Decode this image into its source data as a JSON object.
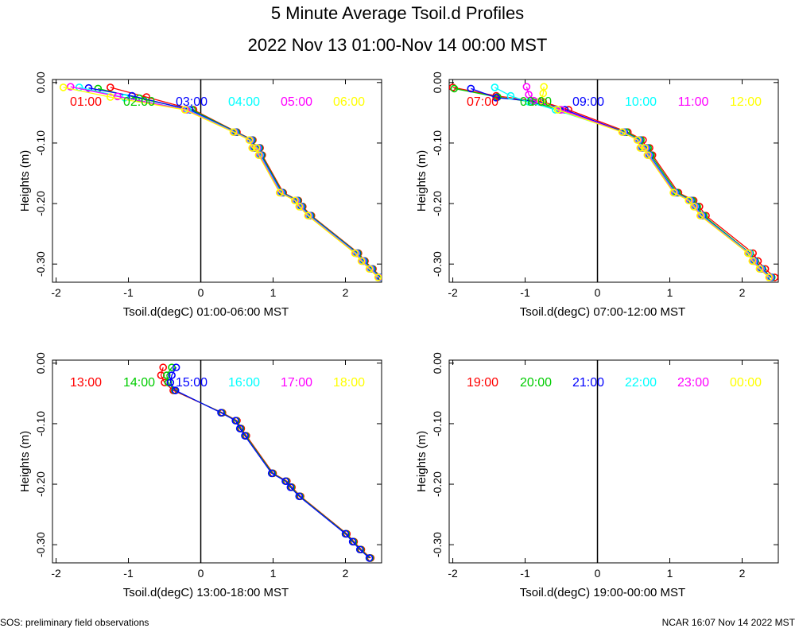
{
  "page": {
    "title": "5 Minute Average Tsoil.d Profiles",
    "subtitle": "2022 Nov 13 01:00-Nov 14 00:00 MST",
    "footer_left": "SOS: preliminary field observations",
    "footer_right": "NCAR 16:07 Nov 14 2022 MST"
  },
  "colors": [
    "#ff0000",
    "#00cc00",
    "#0000ff",
    "#00ffff",
    "#ff00ff",
    "#ffff00"
  ],
  "chart_data": [
    {
      "type": "line",
      "xlabel": "Tsoil.d(degC) 01:00-06:00 MST",
      "ylabel": "Heights (m)",
      "xlim": [
        -2.05,
        2.5
      ],
      "ylim": [
        -0.33,
        0.005
      ],
      "xticks": [
        -2,
        -1,
        0,
        1,
        2
      ],
      "yticks": [
        0.0,
        -0.1,
        -0.2,
        -0.3
      ],
      "ytick_labels": [
        "0.00",
        "-0.10",
        "-0.20",
        "-0.30"
      ],
      "vline_x": 0,
      "series": [
        {
          "name": "01:00",
          "x": [
            -1.25,
            -0.75,
            -0.1,
            0.5,
            0.72,
            0.76,
            0.82,
            0.85,
            1.14,
            1.35,
            1.41,
            1.53,
            2.18,
            2.27,
            2.38,
            2.5
          ],
          "y": [
            -0.008,
            -0.024,
            -0.045,
            -0.082,
            -0.095,
            -0.108,
            -0.108,
            -0.12,
            -0.182,
            -0.195,
            -0.205,
            -0.22,
            -0.282,
            -0.295,
            -0.308,
            -0.322
          ]
        },
        {
          "name": "02:00",
          "x": [
            -1.42,
            -0.85,
            -0.12,
            0.49,
            0.71,
            0.75,
            0.81,
            0.84,
            1.13,
            1.34,
            1.4,
            1.52,
            2.17,
            2.26,
            2.37,
            2.49
          ],
          "y": [
            -0.01,
            -0.026,
            -0.045,
            -0.082,
            -0.095,
            -0.108,
            -0.108,
            -0.12,
            -0.182,
            -0.195,
            -0.205,
            -0.22,
            -0.282,
            -0.295,
            -0.308,
            -0.322
          ]
        },
        {
          "name": "03:00",
          "x": [
            -1.55,
            -0.95,
            -0.15,
            0.48,
            0.7,
            0.74,
            0.8,
            0.83,
            1.12,
            1.33,
            1.39,
            1.51,
            2.16,
            2.25,
            2.36,
            2.48
          ],
          "y": [
            -0.009,
            -0.022,
            -0.045,
            -0.082,
            -0.095,
            -0.108,
            -0.108,
            -0.12,
            -0.182,
            -0.195,
            -0.205,
            -0.22,
            -0.282,
            -0.295,
            -0.308,
            -0.322
          ]
        },
        {
          "name": "04:00",
          "x": [
            -1.68,
            -1.05,
            -0.18,
            0.47,
            0.69,
            0.73,
            0.79,
            0.82,
            1.11,
            1.32,
            1.38,
            1.5,
            2.15,
            2.24,
            2.35,
            2.47
          ],
          "y": [
            -0.008,
            -0.025,
            -0.045,
            -0.082,
            -0.095,
            -0.108,
            -0.108,
            -0.12,
            -0.182,
            -0.195,
            -0.205,
            -0.22,
            -0.282,
            -0.295,
            -0.308,
            -0.322
          ]
        },
        {
          "name": "05:00",
          "x": [
            -1.8,
            -1.15,
            -0.2,
            0.46,
            0.68,
            0.72,
            0.78,
            0.81,
            1.1,
            1.31,
            1.37,
            1.49,
            2.14,
            2.23,
            2.34,
            2.46
          ],
          "y": [
            -0.007,
            -0.023,
            -0.045,
            -0.082,
            -0.095,
            -0.108,
            -0.108,
            -0.12,
            -0.182,
            -0.195,
            -0.205,
            -0.22,
            -0.282,
            -0.295,
            -0.308,
            -0.322
          ]
        },
        {
          "name": "06:00",
          "x": [
            -1.9,
            -1.25,
            -0.22,
            0.45,
            0.67,
            0.71,
            0.77,
            0.8,
            1.09,
            1.3,
            1.36,
            1.48,
            2.13,
            2.22,
            2.33,
            2.45
          ],
          "y": [
            -0.008,
            -0.024,
            -0.045,
            -0.082,
            -0.095,
            -0.108,
            -0.108,
            -0.12,
            -0.182,
            -0.195,
            -0.205,
            -0.22,
            -0.282,
            -0.295,
            -0.308,
            -0.322
          ]
        }
      ]
    },
    {
      "type": "line",
      "xlabel": "Tsoil.d(degC) 07:00-12:00 MST",
      "ylabel": "Heights (m)",
      "xlim": [
        -2.05,
        2.5
      ],
      "ylim": [
        -0.33,
        0.005
      ],
      "xticks": [
        -2,
        -1,
        0,
        1,
        2
      ],
      "yticks": [
        0.0,
        -0.1,
        -0.2,
        -0.3
      ],
      "ytick_labels": [
        "0.00",
        "-0.10",
        "-0.20",
        "-0.30"
      ],
      "vline_x": 0,
      "series": [
        {
          "name": "07:00",
          "x": [
            -2.0,
            -1.4,
            -0.75,
            -0.4,
            0.42,
            0.63,
            0.67,
            0.72,
            0.76,
            1.12,
            1.33,
            1.41,
            1.5,
            2.15,
            2.22,
            2.32,
            2.45
          ],
          "y": [
            -0.008,
            -0.022,
            -0.032,
            -0.045,
            -0.082,
            -0.095,
            -0.108,
            -0.108,
            -0.12,
            -0.182,
            -0.195,
            -0.205,
            -0.22,
            -0.282,
            -0.295,
            -0.308,
            -0.322
          ]
        },
        {
          "name": "08:00",
          "x": [
            -1.98,
            -1.38,
            -0.9,
            -0.52,
            0.4,
            0.6,
            0.64,
            0.7,
            0.74,
            1.1,
            1.31,
            1.38,
            1.47,
            2.11,
            2.18,
            2.28,
            2.41
          ],
          "y": [
            -0.01,
            -0.024,
            -0.032,
            -0.045,
            -0.082,
            -0.095,
            -0.108,
            -0.108,
            -0.12,
            -0.182,
            -0.195,
            -0.205,
            -0.22,
            -0.282,
            -0.295,
            -0.308,
            -0.322
          ]
        },
        {
          "name": "09:00",
          "x": [
            -1.75,
            -1.4,
            -0.8,
            -0.45,
            0.37,
            0.58,
            0.62,
            0.68,
            0.72,
            1.08,
            1.29,
            1.36,
            1.45,
            2.1,
            2.17,
            2.27,
            2.4
          ],
          "y": [
            -0.01,
            -0.025,
            -0.032,
            -0.045,
            -0.082,
            -0.095,
            -0.108,
            -0.108,
            -0.12,
            -0.182,
            -0.195,
            -0.205,
            -0.22,
            -0.282,
            -0.295,
            -0.308,
            -0.322
          ]
        },
        {
          "name": "10:00",
          "x": [
            -1.42,
            -1.2,
            -0.95,
            -0.58,
            0.36,
            0.57,
            0.61,
            0.67,
            0.71,
            1.07,
            1.28,
            1.35,
            1.44,
            2.1,
            2.16,
            2.26,
            2.39
          ],
          "y": [
            -0.008,
            -0.022,
            -0.032,
            -0.045,
            -0.082,
            -0.095,
            -0.108,
            -0.108,
            -0.12,
            -0.182,
            -0.195,
            -0.205,
            -0.22,
            -0.282,
            -0.295,
            -0.308,
            -0.322
          ]
        },
        {
          "name": "11:00",
          "x": [
            -0.98,
            -0.95,
            -0.88,
            -0.5,
            0.35,
            0.56,
            0.6,
            0.66,
            0.7,
            1.06,
            1.27,
            1.34,
            1.43,
            2.09,
            2.15,
            2.25,
            2.38
          ],
          "y": [
            -0.007,
            -0.02,
            -0.03,
            -0.045,
            -0.082,
            -0.095,
            -0.108,
            -0.108,
            -0.12,
            -0.182,
            -0.195,
            -0.205,
            -0.22,
            -0.282,
            -0.295,
            -0.308,
            -0.322
          ]
        },
        {
          "name": "12:00",
          "x": [
            -0.74,
            -0.75,
            -0.78,
            -0.55,
            0.34,
            0.55,
            0.59,
            0.65,
            0.69,
            1.05,
            1.26,
            1.33,
            1.42,
            2.08,
            2.14,
            2.24,
            2.37
          ],
          "y": [
            -0.007,
            -0.018,
            -0.03,
            -0.045,
            -0.082,
            -0.095,
            -0.108,
            -0.108,
            -0.12,
            -0.182,
            -0.195,
            -0.205,
            -0.22,
            -0.282,
            -0.295,
            -0.308,
            -0.322
          ]
        }
      ]
    },
    {
      "type": "line",
      "xlabel": "Tsoil.d(degC) 13:00-18:00 MST",
      "ylabel": "Heights (m)",
      "xlim": [
        -2.05,
        2.5
      ],
      "ylim": [
        -0.33,
        0.005
      ],
      "xticks": [
        -2,
        -1,
        0,
        1,
        2
      ],
      "yticks": [
        0.0,
        -0.1,
        -0.2,
        -0.3
      ],
      "ytick_labels": [
        "0.00",
        "-0.10",
        "-0.20",
        "-0.30"
      ],
      "vline_x": 0,
      "series": [
        {
          "name": "13:00",
          "x": [
            -0.52,
            -0.55,
            -0.5,
            -0.38,
            0.3,
            0.5,
            0.56,
            0.63,
            1.0,
            1.19,
            1.26,
            1.38,
            2.02,
            2.12,
            2.22,
            2.35
          ],
          "y": [
            -0.007,
            -0.02,
            -0.032,
            -0.045,
            -0.082,
            -0.095,
            -0.108,
            -0.12,
            -0.182,
            -0.195,
            -0.205,
            -0.22,
            -0.282,
            -0.295,
            -0.308,
            -0.322
          ]
        },
        {
          "name": "14:00",
          "x": [
            -0.4,
            -0.47,
            -0.45,
            -0.36,
            0.29,
            0.49,
            0.55,
            0.62,
            0.99,
            1.18,
            1.25,
            1.37,
            2.01,
            2.11,
            2.21,
            2.34
          ],
          "y": [
            -0.007,
            -0.02,
            -0.032,
            -0.045,
            -0.082,
            -0.095,
            -0.108,
            -0.12,
            -0.182,
            -0.195,
            -0.205,
            -0.22,
            -0.282,
            -0.295,
            -0.308,
            -0.322
          ]
        },
        {
          "name": "15:00",
          "x": [
            -0.34,
            -0.4,
            -0.42,
            -0.35,
            0.28,
            0.48,
            0.54,
            0.61,
            0.98,
            1.17,
            1.24,
            1.36,
            2.0,
            2.1,
            2.2,
            2.33
          ],
          "y": [
            -0.007,
            -0.02,
            -0.032,
            -0.045,
            -0.082,
            -0.095,
            -0.108,
            -0.12,
            -0.182,
            -0.195,
            -0.205,
            -0.22,
            -0.282,
            -0.295,
            -0.308,
            -0.322
          ]
        },
        {
          "name": "16:00",
          "x": [],
          "y": []
        },
        {
          "name": "17:00",
          "x": [],
          "y": []
        },
        {
          "name": "18:00",
          "x": [],
          "y": []
        }
      ]
    },
    {
      "type": "line",
      "xlabel": "Tsoil.d(degC) 19:00-00:00 MST",
      "ylabel": "Heights (m)",
      "xlim": [
        -2.05,
        2.5
      ],
      "ylim": [
        -0.33,
        0.005
      ],
      "xticks": [
        -2,
        -1,
        0,
        1,
        2
      ],
      "yticks": [
        0.0,
        -0.1,
        -0.2,
        -0.3
      ],
      "ytick_labels": [
        "0.00",
        "-0.10",
        "-0.20",
        "-0.30"
      ],
      "vline_x": 0,
      "series": [
        {
          "name": "19:00",
          "x": [],
          "y": []
        },
        {
          "name": "20:00",
          "x": [],
          "y": []
        },
        {
          "name": "21:00",
          "x": [],
          "y": []
        },
        {
          "name": "22:00",
          "x": [],
          "y": []
        },
        {
          "name": "23:00",
          "x": [],
          "y": []
        },
        {
          "name": "00:00",
          "x": [],
          "y": []
        }
      ]
    }
  ]
}
